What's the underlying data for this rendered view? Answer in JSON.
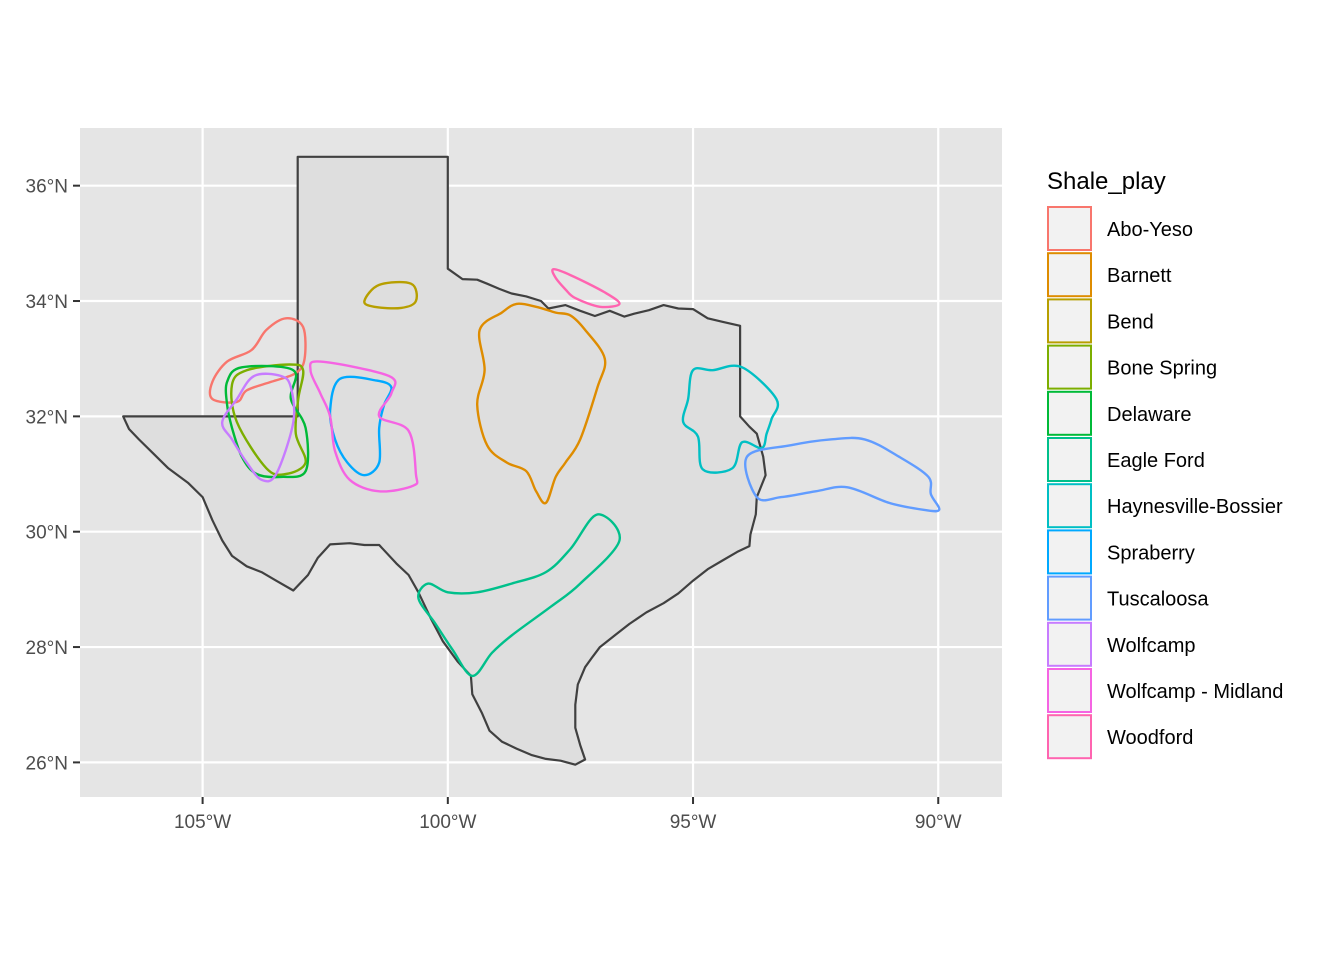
{
  "chart_data": {
    "type": "map",
    "region": "Texas",
    "xlim": [
      -107.5,
      -88.7
    ],
    "ylim": [
      25.4,
      37.0
    ],
    "x_ticks": [
      {
        "value": -105,
        "label": "105°W"
      },
      {
        "value": -100,
        "label": "100°W"
      },
      {
        "value": -95,
        "label": "95°W"
      },
      {
        "value": -90,
        "label": "90°W"
      }
    ],
    "y_ticks": [
      {
        "value": 26,
        "label": "26°N"
      },
      {
        "value": 28,
        "label": "28°N"
      },
      {
        "value": 30,
        "label": "30°N"
      },
      {
        "value": 32,
        "label": "32°N"
      },
      {
        "value": 34,
        "label": "34°N"
      },
      {
        "value": 36,
        "label": "36°N"
      }
    ],
    "grid": true,
    "legend": {
      "title": "Shale_play",
      "position": "right"
    },
    "colors": {
      "panel_background": "#e5e5e5",
      "grid_lines": "#ffffff",
      "state_fill": "#dedede",
      "state_outline": "#404040"
    },
    "state_outline": [
      [
        -103.06,
        36.5
      ],
      [
        -100.0,
        36.5
      ],
      [
        -100.0,
        34.56
      ],
      [
        -99.7,
        34.38
      ],
      [
        -99.4,
        34.37
      ],
      [
        -99.2,
        34.3
      ],
      [
        -98.95,
        34.21
      ],
      [
        -98.7,
        34.13
      ],
      [
        -98.4,
        34.08
      ],
      [
        -98.1,
        34.0
      ],
      [
        -97.95,
        33.87
      ],
      [
        -97.6,
        33.93
      ],
      [
        -97.3,
        33.83
      ],
      [
        -97.0,
        33.74
      ],
      [
        -96.7,
        33.83
      ],
      [
        -96.4,
        33.73
      ],
      [
        -96.2,
        33.78
      ],
      [
        -95.9,
        33.84
      ],
      [
        -95.6,
        33.93
      ],
      [
        -95.3,
        33.87
      ],
      [
        -95.0,
        33.86
      ],
      [
        -94.7,
        33.7
      ],
      [
        -94.4,
        33.64
      ],
      [
        -94.04,
        33.57
      ],
      [
        -94.04,
        33.02
      ],
      [
        -94.04,
        32.0
      ],
      [
        -93.85,
        31.82
      ],
      [
        -93.7,
        31.7
      ],
      [
        -93.57,
        31.3
      ],
      [
        -93.52,
        30.98
      ],
      [
        -93.7,
        30.6
      ],
      [
        -93.72,
        30.3
      ],
      [
        -93.83,
        29.95
      ],
      [
        -93.85,
        29.75
      ],
      [
        -94.1,
        29.65
      ],
      [
        -94.4,
        29.5
      ],
      [
        -94.7,
        29.35
      ],
      [
        -95.0,
        29.15
      ],
      [
        -95.3,
        28.93
      ],
      [
        -95.6,
        28.76
      ],
      [
        -95.95,
        28.6
      ],
      [
        -96.3,
        28.4
      ],
      [
        -96.6,
        28.2
      ],
      [
        -96.9,
        28.0
      ],
      [
        -97.05,
        27.83
      ],
      [
        -97.2,
        27.65
      ],
      [
        -97.35,
        27.35
      ],
      [
        -97.4,
        27.0
      ],
      [
        -97.4,
        26.6
      ],
      [
        -97.3,
        26.3
      ],
      [
        -97.2,
        26.05
      ],
      [
        -97.4,
        25.96
      ],
      [
        -97.7,
        26.03
      ],
      [
        -98.0,
        26.06
      ],
      [
        -98.3,
        26.13
      ],
      [
        -98.6,
        26.24
      ],
      [
        -98.9,
        26.36
      ],
      [
        -99.15,
        26.55
      ],
      [
        -99.3,
        26.85
      ],
      [
        -99.5,
        27.18
      ],
      [
        -99.53,
        27.5
      ],
      [
        -99.8,
        27.75
      ],
      [
        -100.1,
        28.1
      ],
      [
        -100.35,
        28.5
      ],
      [
        -100.6,
        28.95
      ],
      [
        -100.8,
        29.25
      ],
      [
        -101.05,
        29.45
      ],
      [
        -101.4,
        29.77
      ],
      [
        -101.7,
        29.77
      ],
      [
        -102.0,
        29.8
      ],
      [
        -102.4,
        29.78
      ],
      [
        -102.65,
        29.55
      ],
      [
        -102.85,
        29.25
      ],
      [
        -103.15,
        28.98
      ],
      [
        -103.5,
        29.15
      ],
      [
        -103.8,
        29.3
      ],
      [
        -104.1,
        29.4
      ],
      [
        -104.4,
        29.58
      ],
      [
        -104.6,
        29.85
      ],
      [
        -104.8,
        30.2
      ],
      [
        -105.0,
        30.6
      ],
      [
        -105.3,
        30.85
      ],
      [
        -105.7,
        31.1
      ],
      [
        -106.0,
        31.35
      ],
      [
        -106.3,
        31.6
      ],
      [
        -106.5,
        31.78
      ],
      [
        -106.62,
        32.0
      ],
      [
        -103.06,
        32.0
      ]
    ],
    "series": [
      {
        "name": "Abo-Yeso",
        "color": "#F8766D",
        "points": [
          [
            -103.3,
            33.7
          ],
          [
            -102.95,
            33.55
          ],
          [
            -102.92,
            33.0
          ],
          [
            -103.1,
            32.75
          ],
          [
            -103.6,
            32.6
          ],
          [
            -104.1,
            32.45
          ],
          [
            -104.3,
            32.25
          ],
          [
            -104.8,
            32.3
          ],
          [
            -104.8,
            32.6
          ],
          [
            -104.5,
            32.95
          ],
          [
            -104.0,
            33.15
          ],
          [
            -103.7,
            33.5
          ]
        ]
      },
      {
        "name": "Barnett",
        "color": "#DE8C00",
        "points": [
          [
            -98.9,
            33.8
          ],
          [
            -98.6,
            33.95
          ],
          [
            -98.2,
            33.9
          ],
          [
            -97.8,
            33.8
          ],
          [
            -97.5,
            33.75
          ],
          [
            -97.2,
            33.5
          ],
          [
            -96.8,
            33.0
          ],
          [
            -96.95,
            32.5
          ],
          [
            -97.3,
            31.6
          ],
          [
            -97.6,
            31.2
          ],
          [
            -97.8,
            30.95
          ],
          [
            -98.0,
            30.5
          ],
          [
            -98.2,
            30.7
          ],
          [
            -98.4,
            31.05
          ],
          [
            -98.8,
            31.2
          ],
          [
            -99.2,
            31.5
          ],
          [
            -99.4,
            32.2
          ],
          [
            -99.25,
            32.8
          ],
          [
            -99.35,
            33.5
          ]
        ]
      },
      {
        "name": "Bend",
        "color": "#B79F00",
        "points": [
          [
            -101.4,
            34.28
          ],
          [
            -100.75,
            34.3
          ],
          [
            -100.65,
            34.0
          ],
          [
            -100.95,
            33.88
          ],
          [
            -101.5,
            33.9
          ],
          [
            -101.7,
            34.0
          ]
        ]
      },
      {
        "name": "Bone Spring",
        "color": "#7CAE00",
        "points": [
          [
            -103.22,
            32.9
          ],
          [
            -102.95,
            32.8
          ],
          [
            -103.05,
            32.3
          ],
          [
            -103.1,
            31.7
          ],
          [
            -102.9,
            31.2
          ],
          [
            -103.3,
            31.0
          ],
          [
            -103.7,
            31.1
          ],
          [
            -104.3,
            31.9
          ],
          [
            -104.4,
            32.55
          ],
          [
            -104.1,
            32.8
          ]
        ]
      },
      {
        "name": "Delaware",
        "color": "#00BA38",
        "points": [
          [
            -104.2,
            32.85
          ],
          [
            -103.15,
            32.8
          ],
          [
            -103.2,
            32.3
          ],
          [
            -102.9,
            31.8
          ],
          [
            -102.9,
            31.05
          ],
          [
            -103.4,
            30.95
          ],
          [
            -103.9,
            31.0
          ],
          [
            -104.2,
            31.3
          ],
          [
            -104.4,
            31.8
          ],
          [
            -104.5,
            32.2
          ],
          [
            -104.5,
            32.6
          ]
        ]
      },
      {
        "name": "Eagle Ford",
        "color": "#00C08B",
        "points": [
          [
            -96.95,
            30.3
          ],
          [
            -96.5,
            29.85
          ],
          [
            -97.3,
            29.1
          ],
          [
            -97.9,
            28.7
          ],
          [
            -98.7,
            28.2
          ],
          [
            -99.1,
            27.9
          ],
          [
            -99.5,
            27.5
          ],
          [
            -99.9,
            27.95
          ],
          [
            -100.25,
            28.4
          ],
          [
            -100.6,
            28.85
          ],
          [
            -100.4,
            29.1
          ],
          [
            -100.0,
            28.95
          ],
          [
            -99.4,
            28.95
          ],
          [
            -98.7,
            29.1
          ],
          [
            -98.0,
            29.3
          ],
          [
            -97.5,
            29.7
          ]
        ]
      },
      {
        "name": "Haynesville-Bossier",
        "color": "#00BFC4",
        "points": [
          [
            -95.0,
            32.8
          ],
          [
            -94.6,
            32.8
          ],
          [
            -94.0,
            32.85
          ],
          [
            -93.3,
            32.3
          ],
          [
            -93.4,
            31.95
          ],
          [
            -93.5,
            31.7
          ],
          [
            -93.6,
            31.45
          ],
          [
            -94.0,
            31.55
          ],
          [
            -94.2,
            31.1
          ],
          [
            -94.8,
            31.08
          ],
          [
            -94.9,
            31.65
          ],
          [
            -95.2,
            31.9
          ],
          [
            -95.1,
            32.3
          ]
        ]
      },
      {
        "name": "Spraberry",
        "color": "#00A9FF",
        "points": [
          [
            -102.2,
            32.65
          ],
          [
            -101.45,
            32.62
          ],
          [
            -101.15,
            32.5
          ],
          [
            -101.3,
            32.2
          ],
          [
            -101.4,
            31.8
          ],
          [
            -101.4,
            31.2
          ],
          [
            -101.7,
            30.98
          ],
          [
            -102.05,
            31.2
          ],
          [
            -102.3,
            31.6
          ],
          [
            -102.4,
            32.1
          ]
        ]
      },
      {
        "name": "Tuscaloosa",
        "color": "#619CFF",
        "points": [
          [
            -93.9,
            31.3
          ],
          [
            -93.0,
            31.5
          ],
          [
            -92.2,
            31.6
          ],
          [
            -91.5,
            31.6
          ],
          [
            -90.8,
            31.3
          ],
          [
            -90.2,
            30.95
          ],
          [
            -90.15,
            30.65
          ],
          [
            -89.98,
            30.38
          ],
          [
            -90.3,
            30.38
          ],
          [
            -91.0,
            30.5
          ],
          [
            -91.85,
            30.77
          ],
          [
            -92.5,
            30.7
          ],
          [
            -93.2,
            30.6
          ],
          [
            -93.7,
            30.6
          ]
        ]
      },
      {
        "name": "Wolfcamp",
        "color": "#C77CFF",
        "points": [
          [
            -103.95,
            32.7
          ],
          [
            -103.4,
            32.7
          ],
          [
            -103.2,
            32.5
          ],
          [
            -103.15,
            31.9
          ],
          [
            -103.5,
            31.0
          ],
          [
            -103.8,
            30.9
          ],
          [
            -104.1,
            31.2
          ],
          [
            -104.4,
            31.6
          ],
          [
            -104.6,
            31.9
          ],
          [
            -104.3,
            32.3
          ]
        ]
      },
      {
        "name": "Wolfcamp - Midland",
        "color": "#F564E3",
        "points": [
          [
            -102.6,
            32.95
          ],
          [
            -101.2,
            32.7
          ],
          [
            -101.15,
            32.4
          ],
          [
            -101.4,
            32.0
          ],
          [
            -100.8,
            31.75
          ],
          [
            -100.65,
            31.0
          ],
          [
            -100.7,
            30.8
          ],
          [
            -101.4,
            30.7
          ],
          [
            -102.0,
            30.9
          ],
          [
            -102.3,
            31.4
          ],
          [
            -102.4,
            32.0
          ],
          [
            -102.6,
            32.4
          ],
          [
            -102.8,
            32.8
          ]
        ]
      },
      {
        "name": "Woodford",
        "color": "#FF64B0",
        "points": [
          [
            -97.85,
            34.55
          ],
          [
            -97.5,
            34.45
          ],
          [
            -96.8,
            34.15
          ],
          [
            -96.5,
            33.95
          ],
          [
            -96.9,
            33.9
          ],
          [
            -97.4,
            34.05
          ],
          [
            -97.6,
            34.2
          ],
          [
            -97.8,
            34.4
          ]
        ]
      }
    ]
  }
}
